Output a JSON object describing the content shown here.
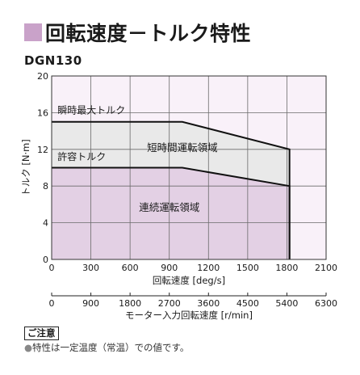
{
  "title": "回転速度－トルク特性",
  "title_square_color": "#c9a2c9",
  "model": "DGN130",
  "note": {
    "heading": "ご注意",
    "text": "特性は一定温度（常温）での値です。"
  },
  "chart_data": {
    "type": "area",
    "xlabel": "回転速度 [deg/s]",
    "ylabel": "トルク [N·m]",
    "xlim": [
      0,
      2100
    ],
    "ylim": [
      0,
      20
    ],
    "xticks": [
      "0",
      "300",
      "600",
      "900",
      "1200",
      "1500",
      "1800",
      "2100"
    ],
    "yticks": [
      "0",
      "4",
      "8",
      "12",
      "16",
      "20"
    ],
    "grid": true,
    "secondary_axis": {
      "label": "モーター入力回転速度 [r/min]",
      "ticks": [
        "0",
        "900",
        "1800",
        "2700",
        "3600",
        "4500",
        "5400",
        "6300"
      ]
    },
    "series": [
      {
        "name": "瞬時最大トルク",
        "x": [
          0,
          1000,
          1820,
          1820
        ],
        "y": [
          15,
          15,
          12,
          0
        ],
        "fill": "#e9e9e9"
      },
      {
        "name": "許容トルク",
        "x": [
          0,
          1000,
          1820,
          1820
        ],
        "y": [
          10,
          10,
          8,
          0
        ],
        "fill": "#e3d0e4"
      }
    ],
    "region_labels": [
      "短時間運転領域",
      "連続運転領域"
    ],
    "plot_background": "#f9f1f9",
    "line_color": "#111111"
  }
}
